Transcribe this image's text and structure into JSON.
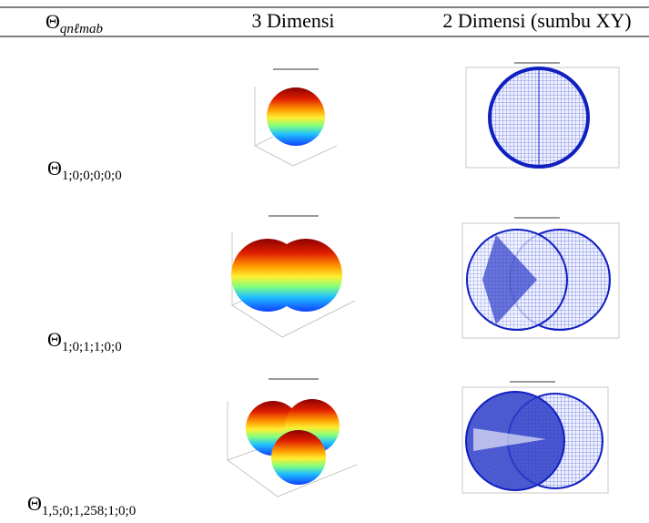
{
  "table": {
    "header": [
      {
        "symbol": "Θ",
        "subscript": "qnℓmab"
      },
      "3 Dimensi",
      "2 Dimensi (sumbu XY)"
    ],
    "rows": [
      {
        "symbol": "Θ",
        "subscript": "1;0;0;0;0;0"
      },
      {
        "symbol": "Θ",
        "subscript": "1;0;1;1;0;0"
      },
      {
        "symbol": "Θ",
        "subscript": "1,5;0;1,258;1;0;0"
      }
    ]
  }
}
